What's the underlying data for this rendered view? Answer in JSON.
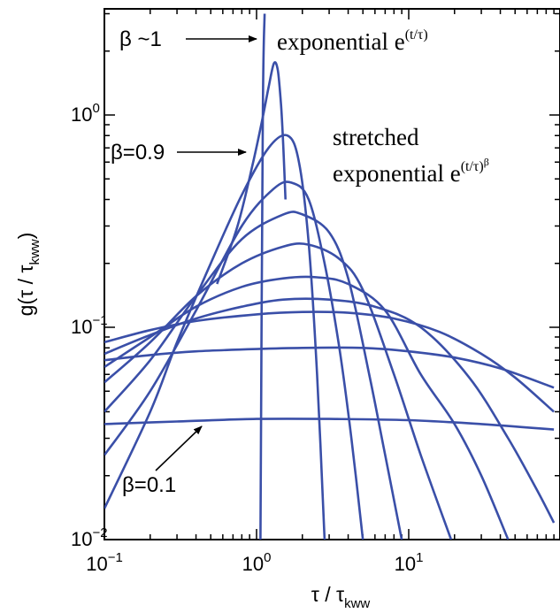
{
  "chart_data": {
    "type": "line",
    "title": "",
    "xscale": "log",
    "yscale": "log",
    "xlim": [
      0.1,
      90
    ],
    "ylim": [
      0.01,
      3
    ],
    "x_ticks": [
      {
        "base": "10",
        "exp": "−1",
        "value": 0.1
      },
      {
        "base": "10",
        "exp": "0",
        "value": 1
      },
      {
        "base": "10",
        "exp": "1",
        "value": 10
      }
    ],
    "y_ticks": [
      {
        "base": "10",
        "exp": "−2",
        "value": 0.01
      },
      {
        "base": "10",
        "exp": "−1",
        "value": 0.1
      },
      {
        "base": "10",
        "exp": "0",
        "value": 1
      }
    ],
    "xlabel": {
      "main": "τ / τ",
      "sub": "kww"
    },
    "ylabel": {
      "main": "g(τ / τ",
      "sub": "kww",
      "close": ")"
    },
    "line_color": "#3a4fa8",
    "annotations": {
      "beta_one": "β ~1",
      "beta_09": "β=0.9",
      "beta_01": "β=0.1",
      "exponential": {
        "text": "exponential e",
        "sup": "(t/τ)"
      },
      "stretched_line1": "stretched",
      "stretched_line2": {
        "text": "exponential e",
        "sup": "(t/τ)",
        "sup2": "β"
      }
    },
    "series": [
      {
        "x": [
          1.06,
          1.1,
          1.13
        ],
        "y": [
          0.01,
          1.0,
          3.0
        ]
      },
      {
        "x": [
          0.55,
          0.75,
          0.95,
          1.1,
          1.2,
          1.3,
          1.38,
          1.45,
          1.5,
          1.55
        ],
        "y": [
          0.16,
          0.3,
          0.6,
          0.98,
          1.35,
          1.75,
          1.62,
          1.1,
          0.7,
          0.4
        ]
      },
      {
        "x": [
          0.1,
          0.2,
          0.3,
          0.5,
          0.8,
          1.2,
          1.6,
          1.9,
          2.2,
          2.5,
          2.8
        ],
        "y": [
          0.014,
          0.04,
          0.085,
          0.2,
          0.42,
          0.7,
          0.8,
          0.6,
          0.25,
          0.06,
          0.01
        ]
      },
      {
        "x": [
          0.1,
          0.2,
          0.4,
          0.8,
          1.3,
          1.7,
          2.2,
          2.8,
          3.5,
          4.2,
          5.0
        ],
        "y": [
          0.025,
          0.05,
          0.12,
          0.3,
          0.45,
          0.48,
          0.4,
          0.2,
          0.08,
          0.03,
          0.01
        ]
      },
      {
        "x": [
          0.1,
          0.2,
          0.4,
          0.8,
          1.5,
          2.0,
          3.0,
          4.0,
          5.5,
          7.0,
          9.0
        ],
        "y": [
          0.04,
          0.07,
          0.14,
          0.26,
          0.34,
          0.34,
          0.28,
          0.17,
          0.06,
          0.025,
          0.01
        ]
      },
      {
        "x": [
          0.1,
          0.2,
          0.4,
          0.8,
          1.5,
          2.2,
          3.5,
          5.0,
          8.0,
          12.0,
          19.0
        ],
        "y": [
          0.055,
          0.085,
          0.14,
          0.2,
          0.24,
          0.245,
          0.21,
          0.15,
          0.06,
          0.025,
          0.01
        ]
      },
      {
        "x": [
          0.1,
          0.2,
          0.4,
          0.8,
          1.5,
          2.5,
          4.0,
          7.0,
          12.0,
          20.0,
          30.0,
          45.0
        ],
        "y": [
          0.065,
          0.09,
          0.125,
          0.155,
          0.17,
          0.172,
          0.16,
          0.12,
          0.06,
          0.035,
          0.02,
          0.01
        ]
      },
      {
        "x": [
          0.1,
          0.2,
          0.4,
          0.8,
          1.5,
          3.0,
          6.0,
          12.0,
          25.0,
          45.0,
          70.0,
          90.0
        ],
        "y": [
          0.075,
          0.092,
          0.11,
          0.125,
          0.135,
          0.135,
          0.125,
          0.1,
          0.058,
          0.03,
          0.017,
          0.012
        ]
      },
      {
        "x": [
          0.1,
          0.2,
          0.4,
          1.0,
          2.0,
          4.0,
          8.0,
          16.0,
          30.0,
          50.0,
          90.0
        ],
        "y": [
          0.085,
          0.097,
          0.107,
          0.115,
          0.118,
          0.117,
          0.11,
          0.095,
          0.075,
          0.058,
          0.04
        ]
      },
      {
        "x": [
          0.1,
          0.2,
          0.4,
          1.0,
          2.0,
          5.0,
          10.0,
          20.0,
          40.0,
          90.0
        ],
        "y": [
          0.07,
          0.074,
          0.077,
          0.079,
          0.08,
          0.08,
          0.077,
          0.072,
          0.064,
          0.052
        ]
      },
      {
        "x": [
          0.1,
          0.3,
          1.0,
          3.0,
          10.0,
          30.0,
          90.0
        ],
        "y": [
          0.035,
          0.036,
          0.037,
          0.037,
          0.0365,
          0.035,
          0.033
        ]
      }
    ]
  }
}
